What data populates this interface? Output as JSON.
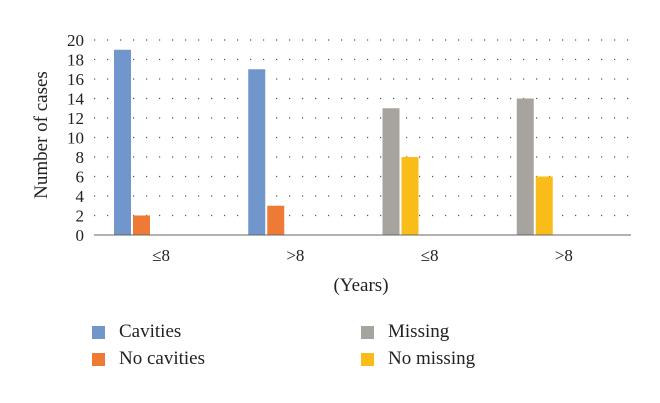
{
  "chart_data": {
    "type": "bar",
    "categories": [
      "≤8",
      ">8",
      "≤8",
      ">8"
    ],
    "xlabel": "(Years)",
    "ylabel": "Number of cases",
    "ylim": [
      0,
      20
    ],
    "yticks": [
      0,
      2,
      4,
      6,
      8,
      10,
      12,
      14,
      16,
      18,
      20
    ],
    "grid": "dotted",
    "legend_position": "bottom",
    "series": [
      {
        "name": "Cavities",
        "color": "#7096cb",
        "values": [
          19,
          17,
          null,
          null
        ]
      },
      {
        "name": "No cavities",
        "color": "#ee7a35",
        "values": [
          2,
          3,
          null,
          null
        ]
      },
      {
        "name": "Missing",
        "color": "#a7a39f",
        "values": [
          null,
          null,
          13,
          14
        ]
      },
      {
        "name": "No missing",
        "color": "#f9bc18",
        "values": [
          null,
          null,
          8,
          6
        ]
      }
    ]
  }
}
